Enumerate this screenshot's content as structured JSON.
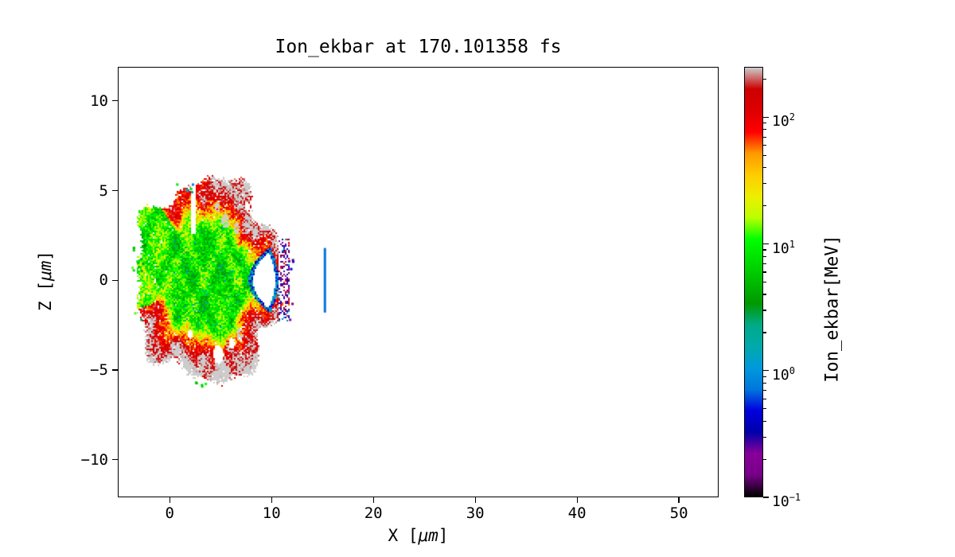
{
  "figure": {
    "background": "#ffffff"
  },
  "chart_data": {
    "type": "heatmap",
    "title": "Ion_ekbar at 170.101358 fs",
    "time_fs": 170.101358,
    "xlabel_parts": {
      "prefix": "X [",
      "italic": "μm",
      "suffix": "]"
    },
    "ylabel_parts": {
      "prefix": "Z [",
      "italic": "μm",
      "suffix": "]"
    },
    "colorbar_label": "Ion_ekbar[MeV]",
    "xlim": [
      -5.1,
      53.9
    ],
    "ylim": [
      -12.1,
      11.9
    ],
    "x_ticks": [
      {
        "value": 0,
        "label": "0"
      },
      {
        "value": 10,
        "label": "10"
      },
      {
        "value": 20,
        "label": "20"
      },
      {
        "value": 30,
        "label": "30"
      },
      {
        "value": 40,
        "label": "40"
      },
      {
        "value": 50,
        "label": "50"
      }
    ],
    "y_ticks": [
      {
        "value": 10,
        "label": "10"
      },
      {
        "value": 5,
        "label": "5"
      },
      {
        "value": 0,
        "label": "0"
      },
      {
        "value": -5,
        "label": "−5"
      },
      {
        "value": -10,
        "label": "−10"
      }
    ],
    "color_scale": "log",
    "vmin_mev": 0.1,
    "vmax_mev": 250,
    "colorbar_ticks": [
      {
        "value": 100,
        "base": "10",
        "exp": "2"
      },
      {
        "value": 10,
        "base": "10",
        "exp": "1"
      },
      {
        "value": 1,
        "base": "10",
        "exp": "0"
      },
      {
        "value": 0.1,
        "base": "10",
        "exp": "−1"
      }
    ],
    "colormap": "nipy_spectral",
    "colormap_stops": [
      [
        0.0,
        "#000000"
      ],
      [
        0.05,
        "#770088"
      ],
      [
        0.1,
        "#880099"
      ],
      [
        0.15,
        "#0000aa"
      ],
      [
        0.2,
        "#0000dd"
      ],
      [
        0.25,
        "#0077dd"
      ],
      [
        0.3,
        "#0099dd"
      ],
      [
        0.35,
        "#00aaaa"
      ],
      [
        0.4,
        "#00aa88"
      ],
      [
        0.45,
        "#009900"
      ],
      [
        0.5,
        "#00bb00"
      ],
      [
        0.55,
        "#00dd00"
      ],
      [
        0.6,
        "#00ff00"
      ],
      [
        0.65,
        "#bbff00"
      ],
      [
        0.7,
        "#eeee00"
      ],
      [
        0.75,
        "#ffcc00"
      ],
      [
        0.8,
        "#ff9900"
      ],
      [
        0.85,
        "#ff0000"
      ],
      [
        0.9,
        "#dd0000"
      ],
      [
        0.95,
        "#cc0000"
      ],
      [
        1.0,
        "#cccccc"
      ]
    ],
    "plume": {
      "center_x": 3.8,
      "center_z": 0.0,
      "radius_x": 7.2,
      "radius_z": 5.6,
      "core_value_mev": 8,
      "rim_value_mev": 120,
      "rim_rise_decades": 1.05,
      "seed": 1337,
      "cavity": {
        "tip_x": 8.2,
        "half_height": 1.75,
        "left_curve": 1.9,
        "right_x": 10.35,
        "right_curve": 0.8,
        "boundary_value_mev": 0.8
      },
      "speckle_column": {
        "x_offset": 0.3,
        "width": 1.1,
        "half_height": 2.3,
        "density": 0.42,
        "purple_min": 0.12,
        "purple_max": 0.5
      },
      "hotspots": [
        [
          5.5,
          3.3,
          0.4
        ],
        [
          6.6,
          2.9,
          0.3
        ],
        [
          4.7,
          4.1,
          0.28
        ],
        [
          6.9,
          -3.0,
          0.33
        ],
        [
          5.7,
          -3.7,
          0.25
        ],
        [
          8.4,
          2.7,
          0.22
        ],
        [
          3.1,
          -4.4,
          0.22
        ]
      ],
      "holes": [
        [
          4.8,
          -4.15,
          0.5
        ],
        [
          6.1,
          -3.5,
          0.3
        ],
        [
          2.0,
          -3.0,
          0.25
        ],
        [
          7.6,
          4.1,
          0.25
        ]
      ],
      "slit": {
        "x_min": 2.15,
        "x_max": 2.55,
        "z_min": 2.6,
        "z_max": 5.6
      }
    },
    "vertical_line": {
      "x": 15.2,
      "z_min": -1.8,
      "z_max": 1.8,
      "value_mev": 0.7
    },
    "stray_dots": [
      {
        "x_min": -3.8,
        "x_max": -2.7,
        "z_min": -2.3,
        "z_max": 1.9,
        "count": 14,
        "v_min": 2.5,
        "v_max": 14
      },
      {
        "x_min": -2.6,
        "x_max": -1.6,
        "z_min": 2.0,
        "z_max": 3.2,
        "count": 5,
        "v_min": 3,
        "v_max": 12
      },
      {
        "x_min": 0.4,
        "x_max": 2.6,
        "z_min": 4.8,
        "z_max": 5.5,
        "count": 6,
        "v_min": 0.25,
        "v_max": 9
      },
      {
        "x_min": 1.4,
        "x_max": 3.6,
        "z_min": -6.1,
        "z_max": -5.5,
        "count": 5,
        "v_min": 3,
        "v_max": 11
      },
      {
        "x_min": 11.6,
        "x_max": 12.1,
        "z_min": -2.2,
        "z_max": 2.2,
        "count": 6,
        "v_min": 0.15,
        "v_max": 0.5
      }
    ]
  }
}
